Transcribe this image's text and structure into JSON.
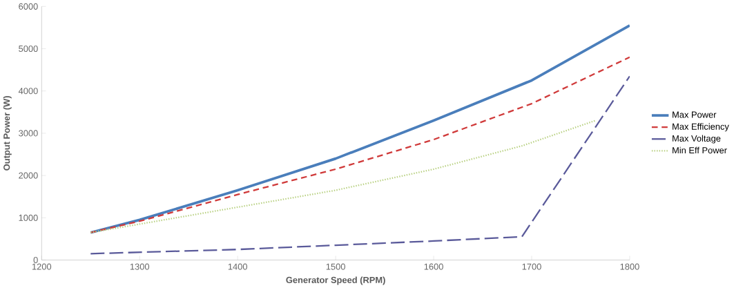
{
  "chart_data": {
    "type": "line",
    "xlabel": "Generator Speed (RPM)",
    "ylabel": "Output Power (W)",
    "xlim": [
      1200,
      1800
    ],
    "xticks": [
      1200,
      1300,
      1400,
      1500,
      1600,
      1700,
      1800
    ],
    "ylim": [
      0,
      6000
    ],
    "yticks": [
      0,
      1000,
      2000,
      3000,
      4000,
      5000,
      6000
    ],
    "grid": false,
    "legend": "right",
    "marker": "none",
    "series": [
      {
        "name": "Max Power",
        "color": "#4a7ebb",
        "line_style": "solid",
        "x": [
          1250,
          1300,
          1400,
          1500,
          1600,
          1700,
          1800
        ],
        "values": [
          650,
          950,
          1650,
          2400,
          3300,
          4250,
          5550
        ]
      },
      {
        "name": "Max Efficiency",
        "color": "#d03a3a",
        "line_style": "dashed",
        "x": [
          1250,
          1300,
          1400,
          1500,
          1600,
          1700,
          1800
        ],
        "values": [
          650,
          920,
          1550,
          2150,
          2850,
          3700,
          4800
        ]
      },
      {
        "name": "Max Voltage",
        "color": "#5a5a9a",
        "line_style": "longdash",
        "x": [
          1250,
          1400,
          1500,
          1600,
          1690,
          1800
        ],
        "values": [
          150,
          250,
          350,
          450,
          550,
          4350
        ]
      },
      {
        "name": "Min Eff Power",
        "color": "#b8d080",
        "line_style": "dotted",
        "x": [
          1250,
          1300,
          1400,
          1500,
          1600,
          1690,
          1765
        ],
        "values": [
          650,
          850,
          1250,
          1650,
          2150,
          2700,
          3300
        ]
      }
    ]
  }
}
